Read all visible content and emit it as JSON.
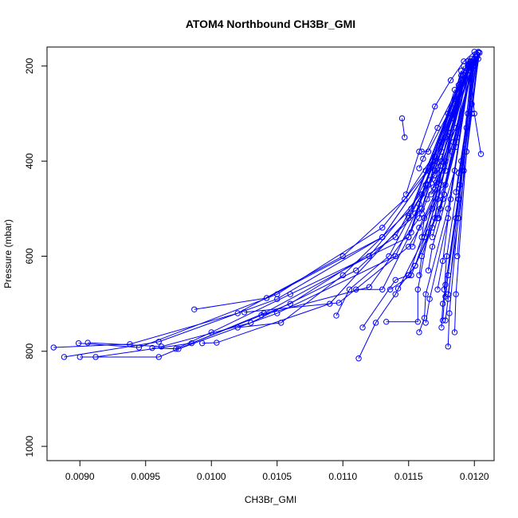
{
  "chart_data": {
    "type": "line",
    "title": "ATOM4 Northbound CH3Br_GMI",
    "xlabel": "CH3Br_GMI",
    "ylabel": "Pressure (mbar)",
    "xlim": [
      0.00875,
      0.01215
    ],
    "ylim": [
      1030,
      160
    ],
    "y_reversed": true,
    "grid": false,
    "xticks": [
      0.009,
      0.0095,
      0.01,
      0.0105,
      0.011,
      0.0115,
      0.012
    ],
    "xtick_labels": [
      "0.0090",
      "0.0095",
      "0.0100",
      "0.0105",
      "0.0110",
      "0.0115",
      "0.0120"
    ],
    "yticks": [
      200,
      400,
      600,
      800,
      1000
    ],
    "ytick_labels": [
      "200",
      "400",
      "600",
      "800",
      "1000"
    ],
    "line_color": "#0000ff",
    "marker": "open-circle",
    "series": [
      {
        "x": [
          0.01145,
          0.01147
        ],
        "y": [
          310,
          350
        ]
      },
      {
        "x": [
          0.01148,
          0.01158,
          0.0117,
          0.01182,
          0.01192,
          0.012
        ],
        "y": [
          470,
          380,
          285,
          230,
          190,
          170
        ]
      },
      {
        "x": [
          0.01152,
          0.01163,
          0.01175,
          0.01185,
          0.01193,
          0.01201
        ],
        "y": [
          550,
          450,
          360,
          280,
          220,
          175
        ]
      },
      {
        "x": [
          0.0118,
          0.01188,
          0.01198,
          0.01203
        ],
        "y": [
          680,
          520,
          300,
          185
        ]
      },
      {
        "x": [
          0.01205,
          0.012,
          0.01197
        ],
        "y": [
          385,
          300,
          210
        ]
      },
      {
        "x": [
          0.01187,
          0.01192,
          0.01198
        ],
        "y": [
          600,
          420,
          200
        ]
      },
      {
        "x": [
          0.0088,
          0.00938,
          0.0102,
          0.011,
          0.01147,
          0.01178,
          0.012
        ],
        "y": [
          792,
          785,
          720,
          600,
          480,
          350,
          190
        ]
      },
      {
        "x": [
          0.00888,
          0.0096,
          0.0105,
          0.0113,
          0.01165,
          0.01195
        ],
        "y": [
          812,
          780,
          690,
          560,
          420,
          190
        ]
      },
      {
        "x": [
          0.00899,
          0.00945,
          0.0105,
          0.0113,
          0.0117,
          0.01197
        ],
        "y": [
          783,
          792,
          680,
          540,
          400,
          190
        ]
      },
      {
        "x": [
          0.009,
          0.0096,
          0.0104,
          0.0112,
          0.01165,
          0.01195
        ],
        "y": [
          812,
          812,
          720,
          600,
          450,
          200
        ]
      },
      {
        "x": [
          0.00906,
          0.00962,
          0.0103,
          0.0111,
          0.0116,
          0.0119
        ],
        "y": [
          782,
          790,
          740,
          630,
          500,
          210
        ]
      },
      {
        "x": [
          0.00912,
          0.00985,
          0.0106,
          0.0114,
          0.01175,
          0.01198
        ],
        "y": [
          812,
          783,
          700,
          560,
          380,
          185
        ]
      },
      {
        "x": [
          0.00955,
          0.00975,
          0.0105,
          0.0114,
          0.0117,
          0.01196
        ],
        "y": [
          793,
          795,
          720,
          600,
          420,
          195
        ]
      },
      {
        "x": [
          0.00973,
          0.01,
          0.0106,
          0.0115,
          0.01185
        ],
        "y": [
          795,
          760,
          680,
          560,
          250
        ]
      },
      {
        "x": [
          0.00993,
          0.01004,
          0.0109,
          0.0115,
          0.0119
        ],
        "y": [
          783,
          782,
          700,
          520,
          230
        ]
      },
      {
        "x": [
          0.00987,
          0.01042,
          0.0113,
          0.01165,
          0.01192
        ],
        "y": [
          712,
          688,
          560,
          420,
          220
        ]
      },
      {
        "x": [
          0.0102,
          0.01053,
          0.011,
          0.01152,
          0.01188
        ],
        "y": [
          750,
          740,
          640,
          500,
          240
        ]
      },
      {
        "x": [
          0.01025,
          0.01097,
          0.0115,
          0.01178,
          0.01199
        ],
        "y": [
          718,
          698,
          580,
          450,
          200
        ]
      },
      {
        "x": [
          0.01038,
          0.0112,
          0.01158,
          0.01194
        ],
        "y": [
          724,
          665,
          520,
          210
        ]
      },
      {
        "x": [
          0.01095,
          0.01105,
          0.01135,
          0.0116,
          0.01192
        ],
        "y": [
          725,
          670,
          600,
          470,
          200
        ]
      },
      {
        "x": [
          0.0111,
          0.0113,
          0.0115,
          0.0117,
          0.01197
        ],
        "y": [
          670,
          670,
          560,
          390,
          190
        ]
      },
      {
        "x": [
          0.01112,
          0.01125,
          0.0114,
          0.01162,
          0.0119
        ],
        "y": [
          815,
          740,
          680,
          560,
          220
        ]
      },
      {
        "x": [
          0.01115,
          0.0114,
          0.0115,
          0.01168,
          0.01195
        ],
        "y": [
          750,
          650,
          640,
          500,
          200
        ]
      },
      {
        "x": [
          0.01133,
          0.01157,
          0.01157,
          0.01165,
          0.0119
        ],
        "y": [
          738,
          738,
          670,
          550,
          240
        ]
      },
      {
        "x": [
          0.01136,
          0.01152,
          0.0117,
          0.0119
        ],
        "y": [
          670,
          640,
          520,
          230
        ]
      },
      {
        "x": [
          0.01142,
          0.01155,
          0.01172,
          0.01194
        ],
        "y": [
          668,
          620,
          480,
          210
        ]
      },
      {
        "x": [
          0.0115,
          0.0116,
          0.01175,
          0.01197
        ],
        "y": [
          515,
          470,
          400,
          190
        ]
      },
      {
        "x": [
          0.01153,
          0.01158,
          0.01178,
          0.01199
        ],
        "y": [
          580,
          540,
          420,
          200
        ]
      },
      {
        "x": [
          0.01158,
          0.01162,
          0.01163,
          0.0118,
          0.01198
        ],
        "y": [
          760,
          730,
          680,
          500,
          195
        ]
      },
      {
        "x": [
          0.0116,
          0.01164,
          0.01175,
          0.01193
        ],
        "y": [
          510,
          480,
          420,
          215
        ]
      },
      {
        "x": [
          0.01163,
          0.01166,
          0.0118,
          0.01196
        ],
        "y": [
          740,
          690,
          520,
          200
        ]
      },
      {
        "x": [
          0.01165,
          0.01168,
          0.01185,
          0.01198
        ],
        "y": [
          630,
          580,
          420,
          190
        ]
      },
      {
        "x": [
          0.01168,
          0.01172,
          0.01183,
          0.012
        ],
        "y": [
          560,
          520,
          380,
          185
        ]
      },
      {
        "x": [
          0.0117,
          0.01174,
          0.01186,
          0.01201
        ],
        "y": [
          440,
          410,
          330,
          180
        ]
      },
      {
        "x": [
          0.01172,
          0.01176,
          0.01182,
          0.01196
        ],
        "y": [
          670,
          610,
          480,
          220
        ]
      },
      {
        "x": [
          0.01173,
          0.01177,
          0.01187,
          0.01199
        ],
        "y": [
          520,
          470,
          350,
          195
        ]
      },
      {
        "x": [
          0.01175,
          0.01176,
          0.01189,
          0.012
        ],
        "y": [
          750,
          700,
          450,
          190
        ]
      },
      {
        "x": [
          0.01176,
          0.01178,
          0.01186,
          0.01198
        ],
        "y": [
          735,
          660,
          520,
          200
        ]
      },
      {
        "x": [
          0.01177,
          0.01179,
          0.0119,
          0.01201
        ],
        "y": [
          670,
          600,
          400,
          180
        ]
      },
      {
        "x": [
          0.01178,
          0.0118,
          0.01194,
          0.01203
        ],
        "y": [
          735,
          690,
          330,
          170
        ]
      },
      {
        "x": [
          0.01178,
          0.0118,
          0.01188,
          0.01199
        ],
        "y": [
          685,
          640,
          480,
          200
        ]
      },
      {
        "x": [
          0.0118,
          0.01181,
          0.01191,
          0.01202
        ],
        "y": [
          790,
          720,
          420,
          175
        ]
      },
      {
        "x": [
          0.01185,
          0.01186,
          0.01194,
          0.01203
        ],
        "y": [
          760,
          680,
          380,
          172
        ]
      },
      {
        "x": [
          0.0116,
          0.01165,
          0.0118,
          0.01198
        ],
        "y": [
          380,
          380,
          300,
          190
        ]
      },
      {
        "x": [
          0.01163,
          0.01168,
          0.01183,
          0.01197
        ],
        "y": [
          420,
          400,
          310,
          200
        ]
      },
      {
        "x": [
          0.01166,
          0.0117,
          0.01182,
          0.01199
        ],
        "y": [
          440,
          430,
          340,
          195
        ]
      },
      {
        "x": [
          0.01169,
          0.01171,
          0.01184,
          0.012
        ],
        "y": [
          455,
          445,
          360,
          185
        ]
      },
      {
        "x": [
          0.01158,
          0.01161,
          0.01172,
          0.01195
        ],
        "y": [
          415,
          395,
          330,
          205
        ]
      },
      {
        "x": [
          0.01155,
          0.01158,
          0.0117,
          0.01196
        ],
        "y": [
          510,
          490,
          420,
          200
        ]
      },
      {
        "x": [
          0.01167,
          0.0117,
          0.01178,
          0.01197
        ],
        "y": [
          470,
          460,
          400,
          195
        ]
      },
      {
        "x": [
          0.01174,
          0.01176,
          0.01186,
          0.01199
        ],
        "y": [
          500,
          480,
          370,
          190
        ]
      },
      {
        "x": [
          0.01188,
          0.01186,
          0.01195,
          0.01202
        ],
        "y": [
          425,
          465,
          300,
          180
        ]
      },
      {
        "x": [
          0.0119,
          0.01188,
          0.01198,
          0.01204
        ],
        "y": [
          420,
          480,
          280,
          172
        ]
      },
      {
        "x": [
          0.0116,
          0.01162,
          0.01175,
          0.01194
        ],
        "y": [
          560,
          520,
          450,
          210
        ]
      },
      {
        "x": [
          0.01158,
          0.0116,
          0.01177,
          0.01195
        ],
        "y": [
          640,
          600,
          470,
          205
        ]
      },
      {
        "x": [
          0.0115,
          0.01155,
          0.01168,
          0.01193
        ],
        "y": [
          640,
          620,
          540,
          215
        ]
      }
    ]
  }
}
